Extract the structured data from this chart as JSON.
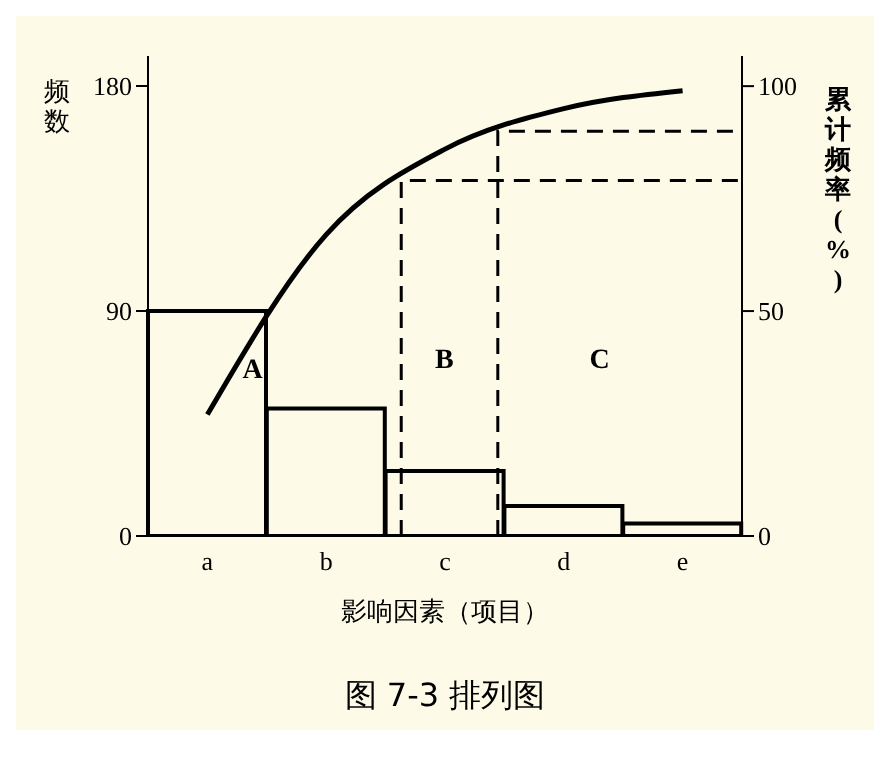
{
  "chart_data": {
    "type": "bar",
    "title": "图 7-3  排列图",
    "xlabel": "影响因素（项目）",
    "ylabel": "频数",
    "y2label": "累计频率(%)",
    "categories": [
      "a",
      "b",
      "c",
      "d",
      "e"
    ],
    "series": [
      {
        "color": "#000000",
        "values": [
          90,
          51,
          26,
          12,
          5
        ]
      },
      {
        "type": "line",
        "axis": "y2",
        "color": "#000000",
        "values": [
          27,
          67,
          86,
          95,
          99
        ]
      }
    ],
    "ref_lines": [
      {
        "axis": "y2",
        "value": 79,
        "line_style": "dashed",
        "color": "#000000"
      },
      {
        "axis": "y2",
        "value": 90,
        "line_style": "dashed",
        "color": "#000000"
      }
    ],
    "ylim": [
      0,
      192
    ],
    "yticks": [
      0,
      90,
      180
    ],
    "y2lim": [
      0,
      106.7
    ],
    "y2ticks": [
      0,
      50,
      100
    ],
    "annotations": [
      "A",
      "B",
      "C"
    ]
  }
}
